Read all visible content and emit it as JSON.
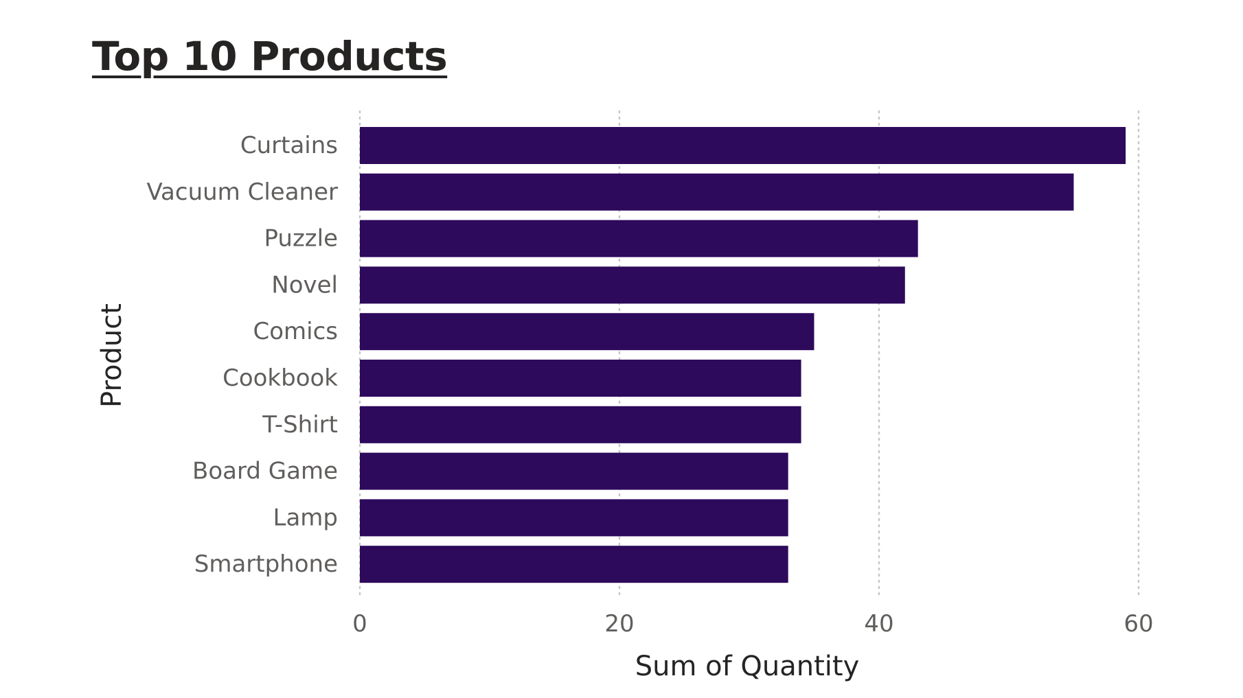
{
  "chart_data": {
    "type": "bar",
    "orientation": "horizontal",
    "title": "Top 10 Products",
    "xlabel": "Sum of Quantity",
    "ylabel": "Product",
    "categories": [
      "Curtains",
      "Vacuum Cleaner",
      "Puzzle",
      "Novel",
      "Comics",
      "Cookbook",
      "T-Shirt",
      "Board Game",
      "Lamp",
      "Smartphone"
    ],
    "values": [
      59,
      55,
      43,
      42,
      35,
      34,
      34,
      33,
      33,
      33
    ],
    "xlim": [
      0,
      60
    ],
    "xticks": [
      0,
      20,
      40,
      60
    ],
    "grid": "vertical-dotted",
    "legend": "none",
    "bar_color": "#2d0a5c",
    "gridline_color": "#c8c6c4"
  }
}
